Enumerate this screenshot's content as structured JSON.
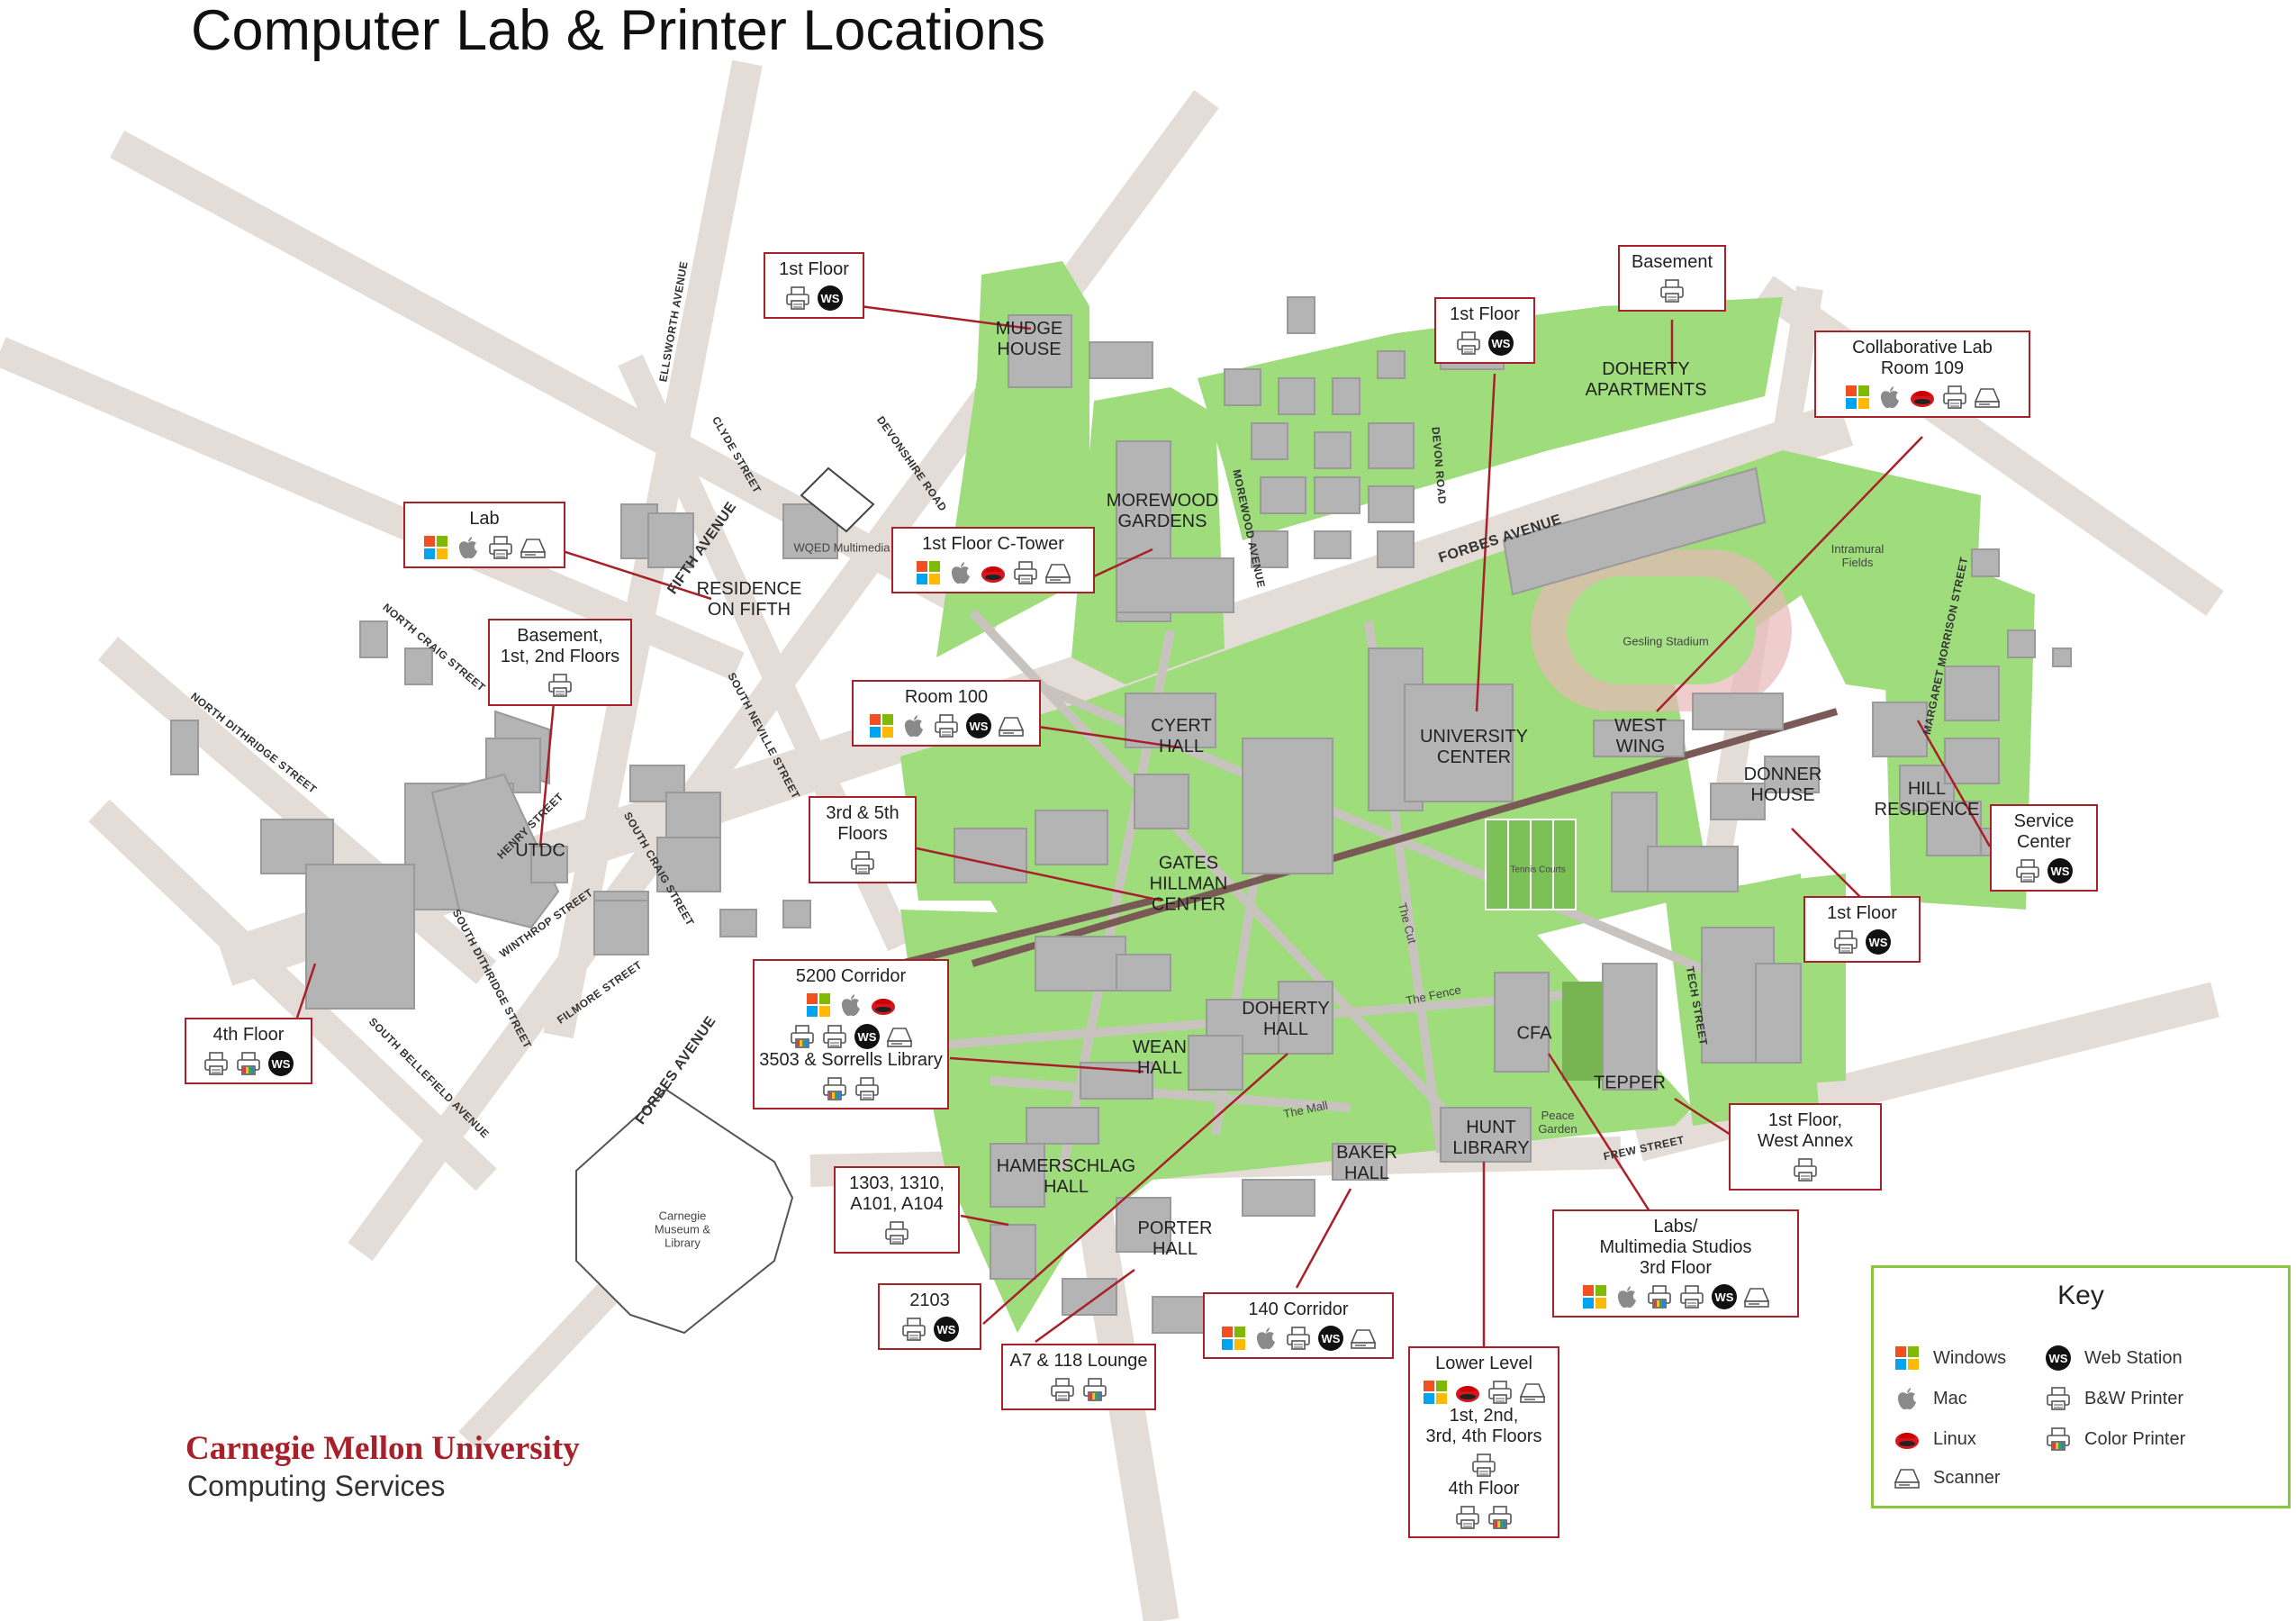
{
  "title": "Computer Lab & Printer Locations",
  "branding": {
    "university": "Carnegie Mellon University",
    "department": "Computing Services"
  },
  "colors": {
    "accent": "#a7202a",
    "campus_green": "#9fdc7c",
    "road": "#e4dcd6",
    "building": "#b4b4b4",
    "key_border": "#8cc63f"
  },
  "buildings": [
    {
      "id": "mudge",
      "label": "MUDGE\nHOUSE"
    },
    {
      "id": "doherty-apts",
      "label": "DOHERTY\nAPARTMENTS"
    },
    {
      "id": "morewood",
      "label": "MOREWOOD\nGARDENS"
    },
    {
      "id": "residence-fifth",
      "label": "RESIDENCE\nON FIFTH"
    },
    {
      "id": "cyert",
      "label": "CYERT\nHALL"
    },
    {
      "id": "university-center",
      "label": "UNIVERSITY\nCENTER"
    },
    {
      "id": "west-wing",
      "label": "WEST\nWING"
    },
    {
      "id": "donner",
      "label": "DONNER\nHOUSE"
    },
    {
      "id": "hill",
      "label": "HILL\nRESIDENCE"
    },
    {
      "id": "utdc",
      "label": "UTDC"
    },
    {
      "id": "gates",
      "label": "GATES\nHILLMAN\nCENTER"
    },
    {
      "id": "doherty-hall",
      "label": "DOHERTY\nHALL"
    },
    {
      "id": "wean",
      "label": "WEAN\nHALL"
    },
    {
      "id": "cfa",
      "label": "CFA"
    },
    {
      "id": "tepper",
      "label": "TEPPER"
    },
    {
      "id": "hamerschlag",
      "label": "HAMERSCHLAG\nHALL"
    },
    {
      "id": "baker",
      "label": "BAKER\nHALL"
    },
    {
      "id": "hunt",
      "label": "HUNT\nLIBRARY"
    },
    {
      "id": "porter",
      "label": "PORTER\nHALL"
    }
  ],
  "places": {
    "wqed": "WQED Multimedia",
    "intramural": "Intramural\nFields",
    "gesling": "Gesling Stadium",
    "tennis": "Tennis Courts",
    "cut": "The Cut",
    "fence": "The Fence",
    "mall": "The Mall",
    "peace": "Peace\nGarden",
    "museum": "Carnegie\nMuseum &\nLibrary"
  },
  "streets": {
    "ellsworth": "ELLSWORTH AVENUE",
    "clyde": "CLYDE STREET",
    "devonshire": "DEVONSHIRE ROAD",
    "fifth": "FIFTH AVENUE",
    "north_craig": "NORTH CRAIG STREET",
    "north_dithridge": "NORTH DITHRIDGE STREET",
    "south_neville": "SOUTH NEVILLE STREET",
    "henry": "HENRY STREET",
    "south_craig": "SOUTH CRAIG STREET",
    "winthrop": "WINTHROP STREET",
    "south_dithridge": "SOUTH DITHRIDGE STREET",
    "filmore": "FILMORE STREET",
    "south_bellefield": "SOUTH BELLEFIELD AVENUE",
    "forbes": "FORBES AVENUE",
    "forbes2": "FORBES AVENUE",
    "morewood_ave": "MOREWOOD AVENUE",
    "devon": "DEVON ROAD",
    "margaret": "MARGARET MORRISON STREET",
    "tech": "TECH STREET",
    "frew": "FREW STREET"
  },
  "callouts": [
    {
      "id": "mudge",
      "text": "1st Floor",
      "icons": [
        "bw-printer",
        "web-station"
      ]
    },
    {
      "id": "doherty-apts",
      "text": "Basement",
      "icons": [
        "bw-printer"
      ]
    },
    {
      "id": "uc",
      "text": "1st Floor",
      "icons": [
        "bw-printer",
        "web-station"
      ]
    },
    {
      "id": "west-wing",
      "text": "Collaborative Lab\nRoom 109",
      "icons": [
        "windows",
        "mac",
        "linux",
        "bw-printer",
        "scanner"
      ]
    },
    {
      "id": "residence-fifth",
      "text": "Lab",
      "icons": [
        "windows",
        "mac",
        "bw-printer",
        "scanner"
      ]
    },
    {
      "id": "morewood",
      "text": "1st Floor C-Tower",
      "icons": [
        "windows",
        "mac",
        "linux",
        "bw-printer",
        "scanner"
      ]
    },
    {
      "id": "utdc",
      "text": "Basement,\n1st, 2nd Floors",
      "icons": [
        "bw-printer"
      ]
    },
    {
      "id": "cyert",
      "text": "Room 100",
      "icons": [
        "windows",
        "mac",
        "bw-printer",
        "web-station",
        "scanner"
      ]
    },
    {
      "id": "gates",
      "text": "3rd & 5th\nFloors",
      "icons": [
        "bw-printer"
      ]
    },
    {
      "id": "hill",
      "text": "Service\nCenter",
      "icons": [
        "bw-printer",
        "web-station"
      ]
    },
    {
      "id": "donner",
      "text": "1st Floor",
      "icons": [
        "bw-printer",
        "web-station"
      ]
    },
    {
      "id": "fourth",
      "text": "4th Floor",
      "icons": [
        "bw-printer",
        "color-printer",
        "web-station"
      ]
    },
    {
      "id": "wean",
      "text": "5200 Corridor",
      "icons": [
        "windows",
        "mac",
        "linux"
      ],
      "icons2": [
        "color-printer",
        "bw-printer",
        "web-station",
        "scanner"
      ],
      "text2": "3503 & Sorrells Library",
      "icons3": [
        "color-printer",
        "bw-printer"
      ]
    },
    {
      "id": "tepper",
      "text": "1st Floor,\nWest Annex",
      "icons": [
        "bw-printer"
      ]
    },
    {
      "id": "hamerschlag",
      "text": "1303, 1310,\nA101, A104",
      "icons": [
        "bw-printer"
      ]
    },
    {
      "id": "cfa",
      "text": "Labs/\nMultimedia Studios\n3rd Floor",
      "icons": [
        "windows",
        "mac",
        "color-printer",
        "bw-printer",
        "web-station",
        "scanner"
      ]
    },
    {
      "id": "doherty-hall",
      "text": "2103",
      "icons": [
        "bw-printer",
        "web-station"
      ]
    },
    {
      "id": "baker",
      "text": "140 Corridor",
      "icons": [
        "windows",
        "mac",
        "bw-printer",
        "web-station",
        "scanner"
      ]
    },
    {
      "id": "porter",
      "text": "A7 & 118 Lounge",
      "icons": [
        "bw-printer",
        "color-printer"
      ]
    },
    {
      "id": "hunt",
      "text": "Lower Level",
      "icons": [
        "windows",
        "linux",
        "bw-printer",
        "scanner"
      ],
      "text2": "1st, 2nd,\n3rd, 4th Floors",
      "icons2": [
        "bw-printer"
      ],
      "text3": "4th Floor",
      "icons3": [
        "bw-printer",
        "color-printer"
      ]
    }
  ],
  "key": {
    "title": "Key",
    "items": [
      {
        "icon": "windows",
        "label": "Windows"
      },
      {
        "icon": "web-station",
        "label": "Web Station"
      },
      {
        "icon": "mac",
        "label": "Mac"
      },
      {
        "icon": "bw-printer",
        "label": "B&W Printer"
      },
      {
        "icon": "linux",
        "label": "Linux"
      },
      {
        "icon": "color-printer",
        "label": "Color Printer"
      },
      {
        "icon": "scanner",
        "label": "Scanner"
      }
    ]
  }
}
